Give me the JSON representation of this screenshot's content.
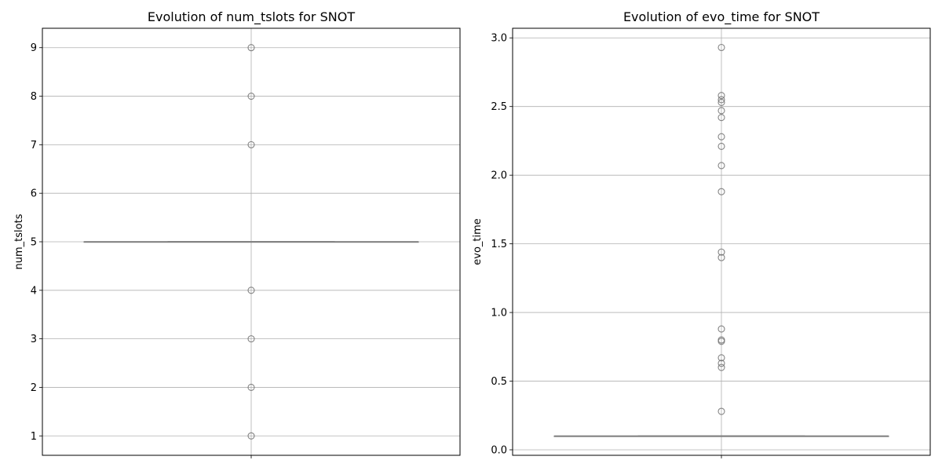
{
  "chart_data": [
    {
      "type": "box",
      "title": "Evolution of num_tslots for SNOT",
      "xlabel": "",
      "ylabel": "num_tslots",
      "ylim": [
        0.6,
        9.4
      ],
      "yticks": [
        1,
        2,
        3,
        4,
        5,
        6,
        7,
        8,
        9
      ],
      "tick_labels": [
        "1",
        "2",
        "3",
        "4",
        "5",
        "6",
        "7",
        "8",
        "9"
      ],
      "grid": true,
      "box": {
        "q1": 5,
        "median": 5,
        "q3": 5,
        "whisker_low": 5,
        "whisker_high": 5
      },
      "outliers": [
        9,
        8,
        7,
        4,
        3,
        2,
        1
      ]
    },
    {
      "type": "box",
      "title": "Evolution of evo_time for SNOT",
      "xlabel": "",
      "ylabel": "evo_time",
      "ylim": [
        -0.04,
        3.07
      ],
      "yticks": [
        0.0,
        0.5,
        1.0,
        1.5,
        2.0,
        2.5,
        3.0
      ],
      "tick_labels": [
        "0.0",
        "0.5",
        "1.0",
        "1.5",
        "2.0",
        "2.5",
        "3.0"
      ],
      "grid": true,
      "box": {
        "q1": 0.1,
        "median": 0.1,
        "q3": 0.1,
        "whisker_low": 0.1,
        "whisker_high": 0.1
      },
      "outliers": [
        2.93,
        2.58,
        2.55,
        2.53,
        2.47,
        2.42,
        2.28,
        2.21,
        2.07,
        1.88,
        1.44,
        1.4,
        0.88,
        0.8,
        0.79,
        0.67,
        0.63,
        0.6,
        0.28
      ]
    }
  ],
  "colors": {
    "box_line": "#808080",
    "outlier": "#707070",
    "grid": "#b0b0b0",
    "spine": "#000000"
  }
}
